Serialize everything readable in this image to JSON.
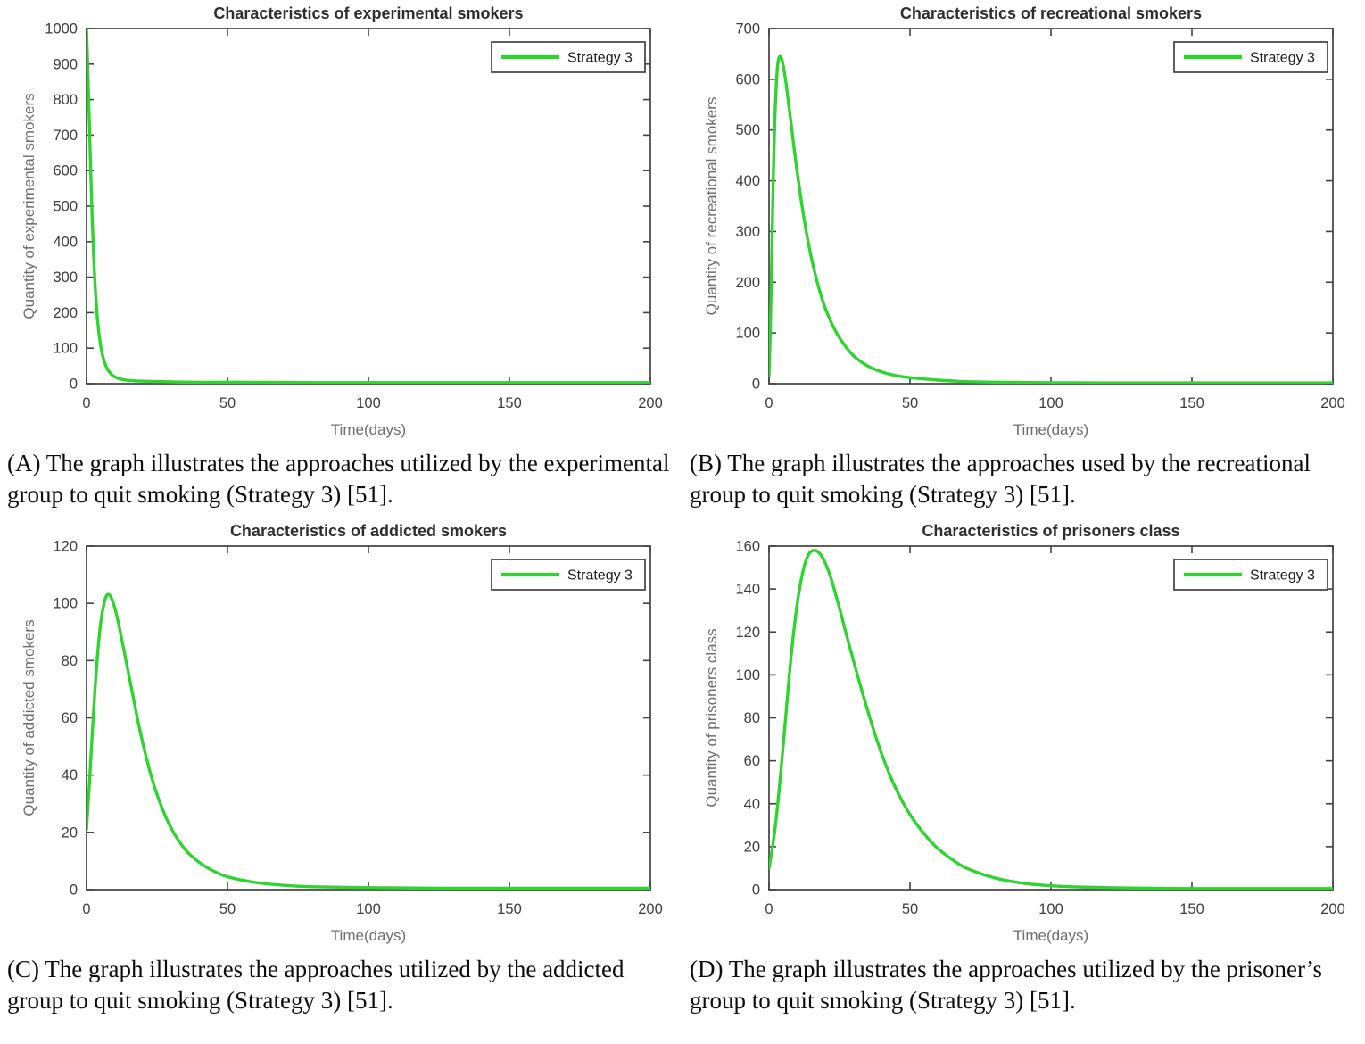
{
  "figure": {
    "background": "#ffffff",
    "accent_color": "#2ed52e",
    "frame_color": "#424242",
    "tick_label_color": "#3d3d3d",
    "axis_label_color": "#6e6e6e",
    "title_color": "#2e2e2e",
    "legend_label": "Strategy 3"
  },
  "chart_data": [
    {
      "type": "line",
      "panel": "A",
      "title": "Characteristics of experimental smokers",
      "xlabel": "Time(days)",
      "ylabel": "Quantity of experimental smokers",
      "xlim": [
        0,
        200
      ],
      "ylim": [
        0,
        1000
      ],
      "xticks": [
        0,
        50,
        100,
        150,
        200
      ],
      "yticks": [
        0,
        100,
        200,
        300,
        400,
        500,
        600,
        700,
        800,
        900,
        1000
      ],
      "grid": false,
      "legend": [
        "Strategy 3"
      ],
      "legend_position": "top-right",
      "line_color": "#2ed52e",
      "series": [
        {
          "name": "Strategy 3",
          "x": [
            0,
            0.5,
            1,
            1.5,
            2,
            2.5,
            3,
            3.5,
            4,
            5,
            6,
            7,
            8,
            9,
            10,
            12,
            14,
            17,
            20,
            25,
            30,
            40,
            60,
            80,
            100,
            125,
            150,
            175,
            200
          ],
          "y": [
            1000,
            870,
            730,
            595,
            470,
            365,
            283,
            220,
            172,
            108,
            70,
            48,
            34,
            25,
            19,
            13,
            10,
            8,
            7,
            6,
            5,
            4,
            4,
            3,
            3,
            3,
            3,
            3,
            3
          ]
        }
      ],
      "caption": "(A) The graph illustrates the approaches utilized by the experimental group to quit smoking (Strategy 3) [51]."
    },
    {
      "type": "line",
      "panel": "B",
      "title": "Characteristics of recreational smokers",
      "xlabel": "Time(days)",
      "ylabel": "Quantity of recreational smokers",
      "xlim": [
        0,
        200
      ],
      "ylim": [
        0,
        700
      ],
      "xticks": [
        0,
        50,
        100,
        150,
        200
      ],
      "yticks": [
        0,
        100,
        200,
        300,
        400,
        500,
        600,
        700
      ],
      "grid": false,
      "legend": [
        "Strategy 3"
      ],
      "legend_position": "top-right",
      "line_color": "#2ed52e",
      "series": [
        {
          "name": "Strategy 3",
          "x": [
            0,
            0.5,
            1,
            1.5,
            2,
            2.5,
            3,
            3.5,
            4,
            4.5,
            5,
            6,
            7,
            8,
            9,
            10,
            12,
            14,
            16,
            18,
            20,
            23,
            26,
            30,
            35,
            40,
            45,
            50,
            60,
            70,
            80,
            100,
            125,
            150,
            175,
            200
          ],
          "y": [
            15,
            120,
            260,
            400,
            510,
            580,
            625,
            642,
            645,
            640,
            628,
            593,
            550,
            505,
            460,
            417,
            340,
            276,
            224,
            182,
            148,
            110,
            82,
            55,
            35,
            23,
            16,
            12,
            7,
            4,
            3,
            2,
            1.5,
            1.5,
            1.5,
            1.5
          ]
        }
      ],
      "caption": "(B) The graph illustrates the approaches used by the recreational group to quit smoking (Strategy 3) [51]."
    },
    {
      "type": "line",
      "panel": "C",
      "title": "Characteristics of addicted smokers",
      "xlabel": "Time(days)",
      "ylabel": "Quantity of addicted smokers",
      "xlim": [
        0,
        200
      ],
      "ylim": [
        0,
        120
      ],
      "xticks": [
        0,
        50,
        100,
        150,
        200
      ],
      "yticks": [
        0,
        20,
        40,
        60,
        80,
        100,
        120
      ],
      "grid": false,
      "legend": [
        "Strategy 3"
      ],
      "legend_position": "top-right",
      "line_color": "#2ed52e",
      "series": [
        {
          "name": "Strategy 3",
          "x": [
            0,
            1,
            2,
            3,
            4,
            5,
            6,
            7,
            8,
            9,
            10,
            11,
            12,
            14,
            16,
            18,
            20,
            23,
            26,
            30,
            35,
            40,
            45,
            50,
            60,
            70,
            80,
            100,
            125,
            150,
            175,
            200
          ],
          "y": [
            21,
            37,
            54,
            70,
            83,
            93,
            99,
            102.5,
            103,
            101.5,
            98.5,
            94.5,
            90,
            80,
            70,
            60,
            51,
            39.5,
            30.5,
            21.5,
            14,
            9.5,
            6.5,
            4.5,
            2.5,
            1.5,
            1,
            0.7,
            0.5,
            0.5,
            0.5,
            0.5
          ]
        }
      ],
      "caption": "(C) The graph illustrates the approaches utilized by the addicted group to quit smoking (Strategy 3) [51]."
    },
    {
      "type": "line",
      "panel": "D",
      "title": "Characteristics of prisoners class",
      "xlabel": "Time(days)",
      "ylabel": "Quantity of prisoners class",
      "xlim": [
        0,
        200
      ],
      "ylim": [
        0,
        160
      ],
      "xticks": [
        0,
        50,
        100,
        150,
        200
      ],
      "yticks": [
        0,
        20,
        40,
        60,
        80,
        100,
        120,
        140,
        160
      ],
      "grid": false,
      "legend": [
        "Strategy 3"
      ],
      "legend_position": "top-right",
      "line_color": "#2ed52e",
      "series": [
        {
          "name": "Strategy 3",
          "x": [
            0,
            2,
            4,
            6,
            8,
            10,
            12,
            14,
            16,
            18,
            20,
            22,
            25,
            28,
            32,
            36,
            40,
            45,
            50,
            55,
            60,
            65,
            70,
            80,
            90,
            100,
            110,
            125,
            150,
            175,
            200
          ],
          "y": [
            10,
            27,
            52,
            82,
            111,
            133,
            148,
            156,
            158,
            156.5,
            152,
            145,
            131,
            116,
            97,
            79,
            63,
            47,
            35,
            26,
            19,
            14,
            10,
            5.5,
            3,
            1.8,
            1.2,
            0.8,
            0.5,
            0.5,
            0.5
          ]
        }
      ],
      "caption": "(D) The graph illustrates the approaches utilized by the prisoner’s group to quit smoking (Strategy 3) [51]."
    }
  ]
}
